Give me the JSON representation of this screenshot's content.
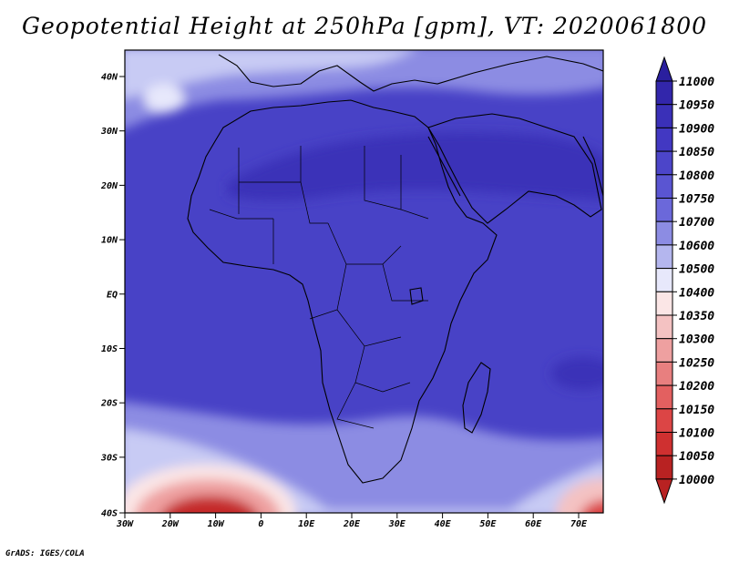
{
  "title": "Geopotential Height at 250hPa [gpm], VT: 2020061800",
  "credit": "GrADS: IGES/COLA",
  "axes": {
    "lat_labels": [
      "40N",
      "30N",
      "20N",
      "10N",
      "EQ",
      "10S",
      "20S",
      "30S",
      "40S"
    ],
    "lon_labels": [
      "30W",
      "20W",
      "10W",
      "0",
      "10E",
      "20E",
      "30E",
      "40E",
      "50E",
      "60E",
      "70E"
    ]
  },
  "colorbar": {
    "levels": [
      "11000",
      "10950",
      "10900",
      "10850",
      "10800",
      "10750",
      "10700",
      "10600",
      "10500",
      "10400",
      "10350",
      "10300",
      "10250",
      "10200",
      "10150",
      "10100",
      "10050",
      "10000"
    ],
    "colors": [
      "#2a1f9e",
      "#3226ab",
      "#3a30b8",
      "#4238c2",
      "#4c45c9",
      "#5a55d2",
      "#6b68da",
      "#8c8ce3",
      "#b4b6ee",
      "#e7e8fb",
      "#fbe6e6",
      "#f4c2c2",
      "#eea0a0",
      "#e87f7f",
      "#e36060",
      "#dc4545",
      "#cf3030",
      "#b82222"
    ]
  },
  "colors": {
    "deep_blue": "#3a30b8",
    "mid_blue": "#4c45c9",
    "light_blue": "#8c8ce3",
    "pale_blue": "#c8cbf4",
    "low_red": "#c52a2a"
  }
}
